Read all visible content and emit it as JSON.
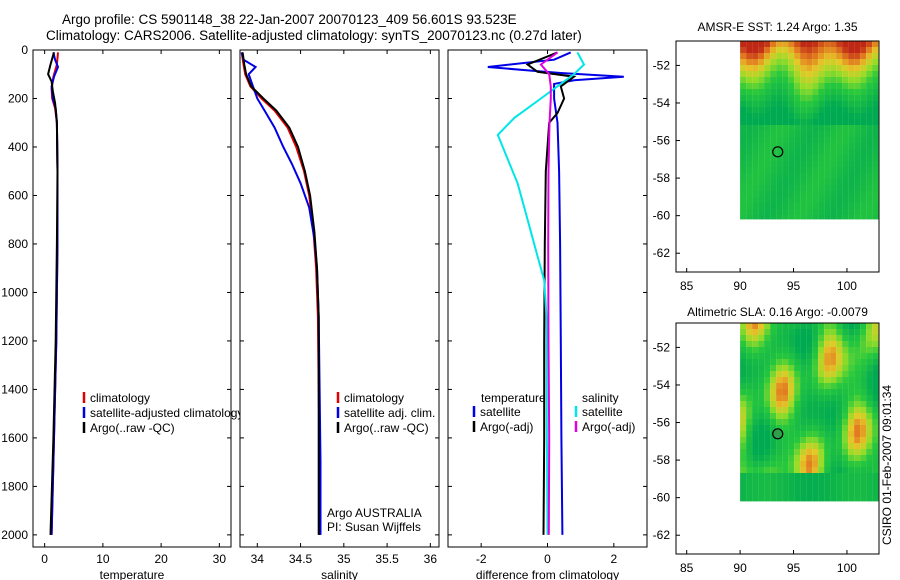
{
  "header": {
    "line1": "Argo profile: CS 5901148_38 22-Jan-2007 20070123_409 56.601S 93.523E",
    "line2": "Climatology: CARS2006. Satellite-adjusted climatology: synTS_20070123.nc (0.27d later)"
  },
  "side_text": "CSIRO 01-Feb-2007 09:01:34",
  "colors": {
    "red": "#e00000",
    "blue": "#0000e6",
    "black": "#000000",
    "cyan": "#00e6e6",
    "magenta": "#e000e0"
  },
  "chart_data": [
    {
      "id": "temperature",
      "type": "line",
      "xlabel": "temperature",
      "xlim": [
        -2,
        32
      ],
      "ylim": [
        2050,
        0
      ],
      "xticks": [
        "0",
        "10",
        "20",
        "30"
      ],
      "xtick_values": [
        0,
        10,
        20,
        30
      ],
      "yticks": [
        "0",
        "200",
        "400",
        "600",
        "800",
        "1000",
        "1200",
        "1400",
        "1600",
        "1800",
        "2000"
      ],
      "ytick_values": [
        0,
        200,
        400,
        600,
        800,
        1000,
        1200,
        1400,
        1600,
        1800,
        2000
      ],
      "legend": [
        "climatology",
        "satellite-adjusted climatology",
        "Argo(..raw -QC)"
      ],
      "series": [
        {
          "name": "climatology",
          "color": "red",
          "points": [
            [
              2.3,
              10
            ],
            [
              2.1,
              60
            ],
            [
              1.5,
              110
            ],
            [
              1.2,
              160
            ],
            [
              1.3,
              200
            ],
            [
              1.8,
              240
            ],
            [
              2.1,
              300
            ],
            [
              2.2,
              500
            ],
            [
              2.2,
              800
            ],
            [
              2.0,
              1200
            ],
            [
              1.6,
              1600
            ],
            [
              1.2,
              2000
            ]
          ]
        },
        {
          "name": "satellite-adjusted climatology",
          "color": "blue",
          "points": [
            [
              1.5,
              10
            ],
            [
              1.8,
              40
            ],
            [
              2.3,
              70
            ],
            [
              1.6,
              110
            ],
            [
              1.2,
              150
            ],
            [
              1.4,
              200
            ],
            [
              1.9,
              240
            ],
            [
              2.1,
              300
            ],
            [
              2.2,
              500
            ],
            [
              2.2,
              800
            ],
            [
              2.0,
              1200
            ],
            [
              1.6,
              1600
            ],
            [
              1.2,
              2000
            ]
          ]
        },
        {
          "name": "Argo(..raw -QC)",
          "color": "black",
          "points": [
            [
              1.6,
              10
            ],
            [
              1.0,
              60
            ],
            [
              0.6,
              100
            ],
            [
              1.2,
              130
            ],
            [
              1.4,
              170
            ],
            [
              1.8,
              220
            ],
            [
              2.1,
              300
            ],
            [
              2.2,
              500
            ],
            [
              2.1,
              800
            ],
            [
              1.9,
              1200
            ],
            [
              1.5,
              1600
            ],
            [
              1.0,
              2000
            ]
          ]
        }
      ]
    },
    {
      "id": "salinity",
      "type": "line",
      "xlabel": "salinity",
      "xlim": [
        33.8,
        36.1
      ],
      "ylim": [
        2050,
        0
      ],
      "xticks": [
        "34",
        "34.5",
        "35",
        "35.5",
        "36"
      ],
      "xtick_values": [
        34,
        34.5,
        35,
        35.5,
        36
      ],
      "legend": [
        "climatology",
        "satellite adj. clim.",
        "Argo(..raw -QC)"
      ],
      "annotations": [
        "Argo AUSTRALIA",
        "PI: Susan Wijffels"
      ],
      "series": [
        {
          "name": "climatology",
          "color": "red",
          "points": [
            [
              33.82,
              10
            ],
            [
              33.84,
              60
            ],
            [
              33.86,
              100
            ],
            [
              33.92,
              150
            ],
            [
              34.05,
              200
            ],
            [
              34.2,
              250
            ],
            [
              34.35,
              320
            ],
            [
              34.45,
              400
            ],
            [
              34.54,
              500
            ],
            [
              34.6,
              600
            ],
            [
              34.65,
              750
            ],
            [
              34.68,
              900
            ],
            [
              34.7,
              1100
            ],
            [
              34.71,
              1400
            ],
            [
              34.72,
              1700
            ],
            [
              34.72,
              2000
            ]
          ]
        },
        {
          "name": "satellite adj. clim.",
          "color": "blue",
          "points": [
            [
              33.82,
              10
            ],
            [
              33.84,
              40
            ],
            [
              33.98,
              70
            ],
            [
              33.9,
              100
            ],
            [
              33.95,
              150
            ],
            [
              34.0,
              200
            ],
            [
              34.1,
              260
            ],
            [
              34.2,
              320
            ],
            [
              34.3,
              400
            ],
            [
              34.4,
              470
            ],
            [
              34.5,
              550
            ],
            [
              34.6,
              650
            ],
            [
              34.66,
              780
            ],
            [
              34.69,
              900
            ],
            [
              34.71,
              1100
            ],
            [
              34.72,
              1400
            ],
            [
              34.73,
              1700
            ],
            [
              34.73,
              2000
            ]
          ]
        },
        {
          "name": "Argo(..raw -QC)",
          "color": "black",
          "points": [
            [
              33.83,
              10
            ],
            [
              33.85,
              60
            ],
            [
              33.87,
              100
            ],
            [
              33.93,
              150
            ],
            [
              34.07,
              200
            ],
            [
              34.22,
              250
            ],
            [
              34.37,
              320
            ],
            [
              34.47,
              400
            ],
            [
              34.55,
              500
            ],
            [
              34.61,
              600
            ],
            [
              34.66,
              750
            ],
            [
              34.69,
              900
            ],
            [
              34.71,
              1100
            ],
            [
              34.71,
              1400
            ],
            [
              34.71,
              1700
            ],
            [
              34.71,
              2000
            ]
          ]
        }
      ]
    },
    {
      "id": "difference",
      "type": "line",
      "xlabel": "difference from climatology",
      "xlim": [
        -3,
        3
      ],
      "ylim": [
        2050,
        0
      ],
      "xticks": [
        "-2",
        "0",
        "2"
      ],
      "xtick_values": [
        -2,
        0,
        2
      ],
      "legend_titles": [
        "temperature",
        "salinity"
      ],
      "legend_temperature": [
        "satellite",
        "Argo(-adj)"
      ],
      "legend_salinity": [
        "satellite",
        "Argo(-adj)"
      ],
      "series": [
        {
          "name": "temperature satellite",
          "color": "blue",
          "points": [
            [
              0.7,
              10
            ],
            [
              0.2,
              40
            ],
            [
              -1.8,
              70
            ],
            [
              -0.5,
              85
            ],
            [
              0.4,
              95
            ],
            [
              2.3,
              110
            ],
            [
              0.8,
              125
            ],
            [
              0.2,
              140
            ],
            [
              0.2,
              200
            ],
            [
              0.3,
              300
            ],
            [
              0.35,
              500
            ],
            [
              0.38,
              800
            ],
            [
              0.4,
              1200
            ],
            [
              0.42,
              1600
            ],
            [
              0.45,
              2000
            ]
          ]
        },
        {
          "name": "temperature Argo(-adj)",
          "color": "black",
          "points": [
            [
              0.3,
              10
            ],
            [
              -0.6,
              60
            ],
            [
              -0.3,
              90
            ],
            [
              0.8,
              110
            ],
            [
              0.4,
              150
            ],
            [
              0.5,
              200
            ],
            [
              0.3,
              260
            ],
            [
              0.05,
              300
            ],
            [
              -0.05,
              500
            ],
            [
              -0.08,
              800
            ],
            [
              -0.1,
              1200
            ],
            [
              -0.1,
              1600
            ],
            [
              -0.12,
              2000
            ]
          ]
        },
        {
          "name": "salinity satellite",
          "color": "cyan",
          "points": [
            [
              0.9,
              10
            ],
            [
              1.1,
              60
            ],
            [
              0.8,
              100
            ],
            [
              -0.2,
              200
            ],
            [
              -1.0,
              280
            ],
            [
              -1.5,
              350
            ],
            [
              -1.2,
              450
            ],
            [
              -0.9,
              550
            ],
            [
              -0.7,
              650
            ],
            [
              -0.5,
              750
            ],
            [
              -0.3,
              850
            ],
            [
              -0.1,
              950
            ],
            [
              -0.03,
              1100
            ],
            [
              -0.02,
              1500
            ],
            [
              0,
              2000
            ]
          ]
        },
        {
          "name": "salinity Argo(-adj)",
          "color": "magenta",
          "points": [
            [
              0.3,
              10
            ],
            [
              -0.2,
              60
            ],
            [
              0.05,
              100
            ],
            [
              0.1,
              150
            ],
            [
              0.1,
              200
            ],
            [
              0.06,
              300
            ],
            [
              0.03,
              500
            ],
            [
              0.02,
              800
            ],
            [
              0.03,
              1200
            ],
            [
              0.05,
              1600
            ],
            [
              0.04,
              2000
            ]
          ]
        }
      ]
    },
    {
      "id": "sst_map",
      "type": "heatmap",
      "title": "AMSR-E SST: 1.24 Argo: 1.35",
      "xlim": [
        84,
        103
      ],
      "ylim": [
        -63,
        -50.7
      ],
      "xticks": [
        "85",
        "90",
        "95",
        "100"
      ],
      "xtick_values": [
        85,
        90,
        95,
        100
      ],
      "yticks": [
        "-52",
        "-54",
        "-56",
        "-58",
        "-60",
        "-62"
      ],
      "ytick_values": [
        -52,
        -54,
        -56,
        -58,
        -60,
        -62
      ],
      "data_extent": {
        "lon": [
          90,
          103
        ],
        "lat": [
          -60.2,
          -50.7
        ]
      },
      "marker": {
        "lon": 93.523,
        "lat": -56.601
      }
    },
    {
      "id": "sla_map",
      "type": "heatmap",
      "title": "Altimetric SLA: 0.16 Argo: -0.0079",
      "xlim": [
        84,
        103
      ],
      "ylim": [
        -63,
        -50.7
      ],
      "xticks": [
        "85",
        "90",
        "95",
        "100"
      ],
      "xtick_values": [
        85,
        90,
        95,
        100
      ],
      "yticks": [
        "-52",
        "-54",
        "-56",
        "-58",
        "-60",
        "-62"
      ],
      "ytick_values": [
        -52,
        -54,
        -56,
        -58,
        -60,
        -62
      ],
      "data_extent": {
        "lon": [
          90,
          103
        ],
        "lat": [
          -60.2,
          -50.7
        ]
      },
      "marker": {
        "lon": 93.523,
        "lat": -56.601
      }
    }
  ]
}
